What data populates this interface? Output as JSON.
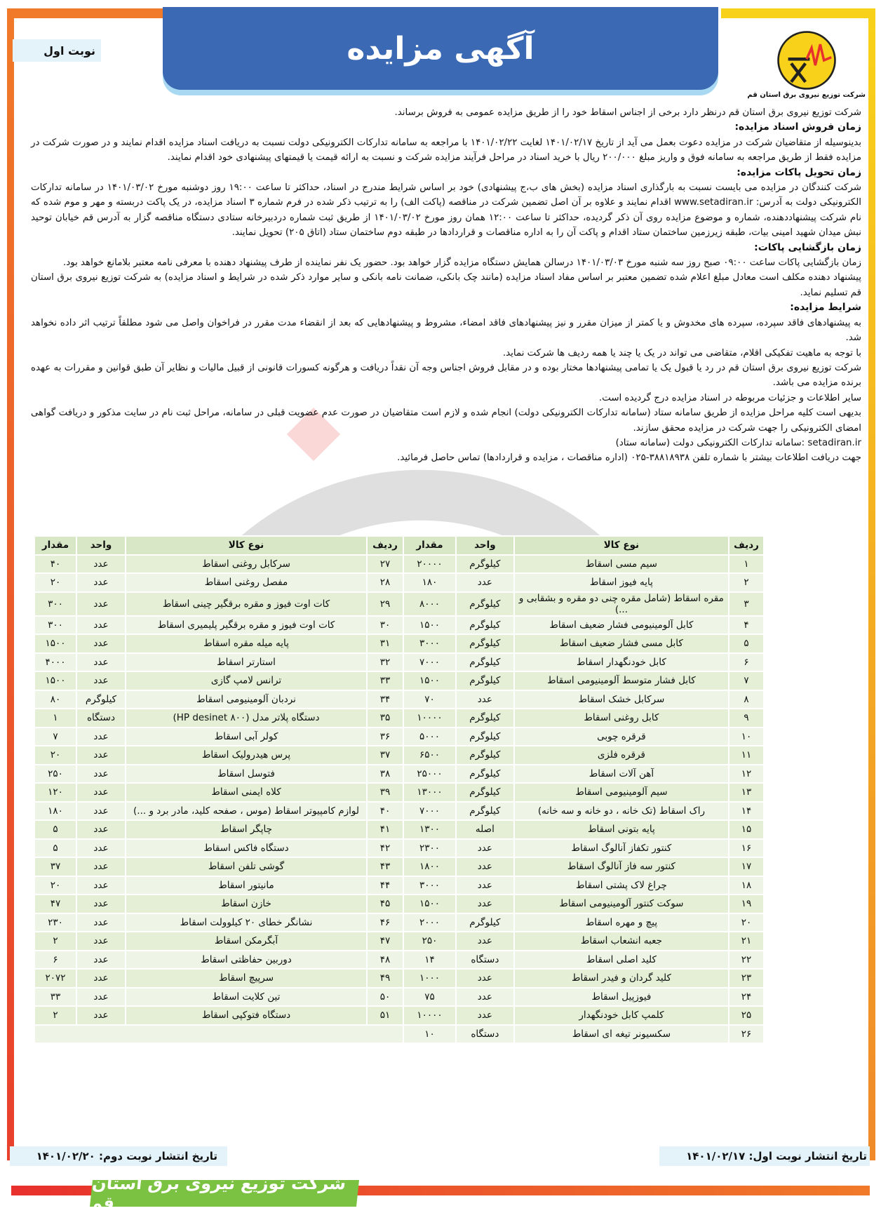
{
  "header": {
    "title": "آگهی مزایده",
    "round": "نوبت اول",
    "company_caption": "شرکت توزیع نیروی برق استان قم",
    "colors": {
      "title_bg": "#3b69b3",
      "orange": "#f07a2a",
      "yellow": "#f8d21a",
      "green": "#7cc242",
      "table": "#e4efd6"
    }
  },
  "body": {
    "intro": "شرکت توزیع نیروی برق استان قم درنظر دارد برخی از اجناس اسقاط خود را از طریق مزایده عمومی به فروش برساند.",
    "h1": "زمان فروش اسناد مزایده:",
    "p1": "بدینوسیله از متقاضیان شرکت در مزایده دعوت بعمل می آید از تاریخ ۱۴۰۱/۰۲/۱۷ لغایت ۱۴۰۱/۰۲/۲۲ با مراجعه به سامانه تدارکات الکترونیکی دولت نسبت به دریافت اسناد مزایده اقدام نمایند و در صورت شرکت در مزایده فقط از طریق مراجعه به سامانه فوق و واریز مبلغ ۲۰۰/۰۰۰ ریال با خرید اسناد در مراحل فرآیند مزایده شرکت و نسبت به ارائه قیمت یا قیمتهای پیشنهادی خود اقدام نمایند.",
    "h2": "زمان تحویل پاکات مزایده:",
    "p2": "شرکت کنندگان در مزایده می بایست نسبت به بارگذاری اسناد مزایده (بخش های ب،ج پیشنهادی) خود بر اساس شرایط مندرج در اسناد، حداکثر تا ساعت ۱۹:۰۰ روز دوشنبه مورخ ۱۴۰۱/۰۳/۰۲ در سامانه تدارکات الکترونیکی دولت به آدرس: www.setadiran.ir اقدام نمایند و علاوه بر آن اصل تضمین شرکت در مناقصه (پاکت الف) را به ترتیب ذکر شده در فرم شماره ۳ اسناد مزایده، در یک پاکت دربسته و مهر و موم شده که نام شرکت پیشنهاددهنده، شماره و موضوع مزایده روی آن ذکر گردیده، حداکثر تا ساعت ۱۲:۰۰ همان روز مورخ ۱۴۰۱/۰۳/۰۲ از طریق ثبت شماره دردبیرخانه ستادی دستگاه مناقصه گزار به آدرس قم خیابان توحید نبش میدان شهید امینی بیات، طبقه زیرزمین ساختمان ستاد اقدام و پاکت آن را به اداره مناقصات و قراردادها در طبقه دوم ساختمان ستاد (اتاق ۲۰۵) تحویل نمایند.",
    "h3": "زمان بازگشایی پاکات:",
    "p3": "زمان بازگشایی پاکات ساعت ۰۹:۰۰ صبح روز سه شنبه مورخ ۱۴۰۱/۰۳/۰۳ درسالن همایش دستگاه مزایده گزار خواهد بود. حضور یک نفر نماینده از طرف پیشنهاد دهنده با معرفی نامه معتبر بلامانع خواهد بود.",
    "p4": "پیشنهاد دهنده مکلف است معادل مبلغ اعلام شده تضمین معتبر بر اساس مفاد اسناد مزایده (مانند چک بانکی، ضمانت نامه بانکی و سایر موارد ذکر شده در شرایط و اسناد مزایده) به شرکت توزیع نیروی برق استان قم تسلیم نماید.",
    "h4": "شرایط مزایده:",
    "p5": "به پیشنهادهای فاقد سپرده، سپرده های مخدوش و یا کمتر از میزان مقرر و نیز پیشنهادهای فاقد امضاء، مشروط و پیشنهادهایی که بعد از انقضاء مدت مقرر در فراخوان واصل می شود مطلقاً ترتیب اثر داده نخواهد شد.",
    "p6": "با توجه به ماهیت تفکیکی اقلام، متقاضی می تواند در یک یا چند یا همه ردیف ها شرکت نماید.",
    "p7": "شرکت توزیع نیروی برق استان قم در رد یا قبول یک یا تمامی پیشنهادها مختار بوده و در مقابل فروش اجناس وجه آن نقداً دریافت و هرگونه کسورات قانونی از قبیل مالیات و نظایر آن طبق قوانین و مقررات به عهده برنده مزایده می باشد.",
    "p8": "سایر اطلاعات و جزئیات مربوطه در اسناد مزایده درج گردیده است.",
    "p9": "بدیهی است کلیه مراحل مزایده از طریق سامانه ستاد (سامانه تدارکات الکترونیکی دولت) انجام شده و لازم است متقاضیان در صورت عدم عضویت قبلی در سامانه، مراحل ثبت نام در سایت مذکور و دریافت گواهی امضای الکترونیکی را جهت شرکت در مزایده محقق سازند.",
    "p10": "setadiran.ir :سامانه تدارکات الکترونیکی دولت (سامانه ستاد)",
    "p11": "جهت دریافت اطلاعات بیشتر با شماره تلفن ۳۸۸۱۸۹۳۸-۰۲۵ (اداره مناقصات ، مزایده و قراردادها) تماس حاصل فرمائید."
  },
  "table": {
    "headers": {
      "row": "ردیف",
      "item": "نوع کالا",
      "unit": "واحد",
      "qty": "مقدار"
    },
    "rows": [
      {
        "r": [
          "۱",
          "سیم مسی اسقاط",
          "کیلوگرم",
          "۲۰۰۰۰"
        ],
        "l": [
          "۲۷",
          "سرکابل روغنی اسقاط",
          "عدد",
          "۴۰"
        ]
      },
      {
        "r": [
          "۲",
          "پایه فیوز اسقاط",
          "عدد",
          "۱۸۰"
        ],
        "l": [
          "۲۸",
          "مفصل روغنی اسقاط",
          "عدد",
          "۲۰"
        ]
      },
      {
        "r": [
          "۳",
          "مقره اسقاط (شامل مقره چنی دو مقره و بشقابی و ...)",
          "کیلوگرم",
          "۸۰۰۰"
        ],
        "l": [
          "۲۹",
          "کات اوت فیوز و مقره برقگیر چینی اسقاط",
          "عدد",
          "۳۰۰"
        ]
      },
      {
        "r": [
          "۴",
          "کابل آلومینیومی فشار ضعیف اسقاط",
          "کیلوگرم",
          "۱۵۰۰"
        ],
        "l": [
          "۳۰",
          "کات اوت فیوز و مقره برقگیر پلیمیری اسقاط",
          "عدد",
          "۳۰۰"
        ]
      },
      {
        "r": [
          "۵",
          "کابل مسی فشار ضعیف اسقاط",
          "کیلوگرم",
          "۳۰۰۰"
        ],
        "l": [
          "۳۱",
          "پایه میله مقره اسقاط",
          "عدد",
          "۱۵۰۰"
        ]
      },
      {
        "r": [
          "۶",
          "کابل خودنگهدار اسقاط",
          "کیلوگرم",
          "۷۰۰۰"
        ],
        "l": [
          "۳۲",
          "استارتر اسقاط",
          "عدد",
          "۴۰۰۰"
        ]
      },
      {
        "r": [
          "۷",
          "کابل فشار متوسط آلومینیومی اسقاط",
          "کیلوگرم",
          "۱۵۰۰"
        ],
        "l": [
          "۳۳",
          "ترانس لامپ گازی",
          "عدد",
          "۱۵۰۰"
        ]
      },
      {
        "r": [
          "۸",
          "سرکابل خشک اسقاط",
          "عدد",
          "۷۰"
        ],
        "l": [
          "۳۴",
          "نردبان آلومینیومی اسقاط",
          "کیلوگرم",
          "۸۰"
        ]
      },
      {
        "r": [
          "۹",
          "کابل روغنی اسقاط",
          "کیلوگرم",
          "۱۰۰۰۰"
        ],
        "l": [
          "۳۵",
          "دستگاه پلاتر مدل (HP desinet ۸۰۰)",
          "دستگاه",
          "۱"
        ]
      },
      {
        "r": [
          "۱۰",
          "قرقره چوبی",
          "کیلوگرم",
          "۵۰۰۰"
        ],
        "l": [
          "۳۶",
          "کولر آبی اسقاط",
          "عدد",
          "۷"
        ]
      },
      {
        "r": [
          "۱۱",
          "قرقره فلزی",
          "کیلوگرم",
          "۶۵۰۰"
        ],
        "l": [
          "۳۷",
          "پرس هیدرولیک اسقاط",
          "عدد",
          "۲۰"
        ]
      },
      {
        "r": [
          "۱۲",
          "آهن آلات اسقاط",
          "کیلوگرم",
          "۲۵۰۰۰"
        ],
        "l": [
          "۳۸",
          "فتوسل اسقاط",
          "عدد",
          "۲۵۰"
        ]
      },
      {
        "r": [
          "۱۳",
          "سیم آلومینیومی اسقاط",
          "کیلوگرم",
          "۱۳۰۰۰"
        ],
        "l": [
          "۳۹",
          "کلاه ایمنی اسقاط",
          "عدد",
          "۱۲۰"
        ]
      },
      {
        "r": [
          "۱۴",
          "راک اسقاط (تک خانه ، دو خانه و سه خانه)",
          "کیلوگرم",
          "۷۰۰۰"
        ],
        "l": [
          "۴۰",
          "لوازم کامپیوتر اسقاط (موس ، صفحه کلید، مادر برد و ...)",
          "عدد",
          "۱۸۰"
        ]
      },
      {
        "r": [
          "۱۵",
          "پایه بتونی اسقاط",
          "اصله",
          "۱۳۰۰"
        ],
        "l": [
          "۴۱",
          "چاپگر اسقاط",
          "عدد",
          "۵"
        ]
      },
      {
        "r": [
          "۱۶",
          "کنتور تکفاز آنالوگ اسقاط",
          "عدد",
          "۲۳۰۰"
        ],
        "l": [
          "۴۲",
          "دستگاه فاکس اسقاط",
          "عدد",
          "۵"
        ]
      },
      {
        "r": [
          "۱۷",
          "کنتور سه فاز آنالوگ اسقاط",
          "عدد",
          "۱۸۰۰"
        ],
        "l": [
          "۴۳",
          "گوشی تلفن اسقاط",
          "عدد",
          "۳۷"
        ]
      },
      {
        "r": [
          "۱۸",
          "چراغ لاک پشتی اسقاط",
          "عدد",
          "۳۰۰۰"
        ],
        "l": [
          "۴۴",
          "مانیتور اسقاط",
          "عدد",
          "۲۰"
        ]
      },
      {
        "r": [
          "۱۹",
          "سوکت کنتور آلومینیومی اسقاط",
          "عدد",
          "۱۵۰۰"
        ],
        "l": [
          "۴۵",
          "خازن اسقاط",
          "عدد",
          "۴۷"
        ]
      },
      {
        "r": [
          "۲۰",
          "پیچ و مهره اسقاط",
          "کیلوگرم",
          "۲۰۰۰"
        ],
        "l": [
          "۴۶",
          "نشانگر خطای ۲۰ کیلوولت اسقاط",
          "عدد",
          "۲۳۰"
        ]
      },
      {
        "r": [
          "۲۱",
          "جعبه انشعاب اسقاط",
          "عدد",
          "۲۵۰"
        ],
        "l": [
          "۴۷",
          "آبگرمکن اسقاط",
          "عدد",
          "۲"
        ]
      },
      {
        "r": [
          "۲۲",
          "کلید اصلی اسقاط",
          "دستگاه",
          "۱۴"
        ],
        "l": [
          "۴۸",
          "دوربین حفاظتی اسقاط",
          "عدد",
          "۶"
        ]
      },
      {
        "r": [
          "۲۳",
          "کلید گردان و فیدر اسقاط",
          "عدد",
          "۱۰۰۰"
        ],
        "l": [
          "۴۹",
          "سرپیچ اسقاط",
          "عدد",
          "۲۰۷۲"
        ]
      },
      {
        "r": [
          "۲۴",
          "فیوزپیل اسقاط",
          "عدد",
          "۷۵"
        ],
        "l": [
          "۵۰",
          "تین کلایت اسقاط",
          "عدد",
          "۳۳"
        ]
      },
      {
        "r": [
          "۲۵",
          "کلمپ کابل خودنگهدار",
          "عدد",
          "۱۰۰۰۰"
        ],
        "l": [
          "۵۱",
          "دستگاه فتوکپی اسقاط",
          "عدد",
          "۲"
        ]
      },
      {
        "r": [
          "۲۶",
          "سکسیونر تیغه ای اسقاط",
          "دستگاه",
          "۱۰"
        ],
        "l": [
          "",
          "",
          "",
          ""
        ]
      }
    ]
  },
  "footer": {
    "date_first": "تاریخ انتشار نوبت اول: ۱۴۰۱/۰۲/۱۷",
    "date_second": "تاریخ انتشار نوبت دوم: ۱۴۰۱/۰۲/۲۰",
    "company": "شرکت توزیع نیروی برق استان قم"
  }
}
